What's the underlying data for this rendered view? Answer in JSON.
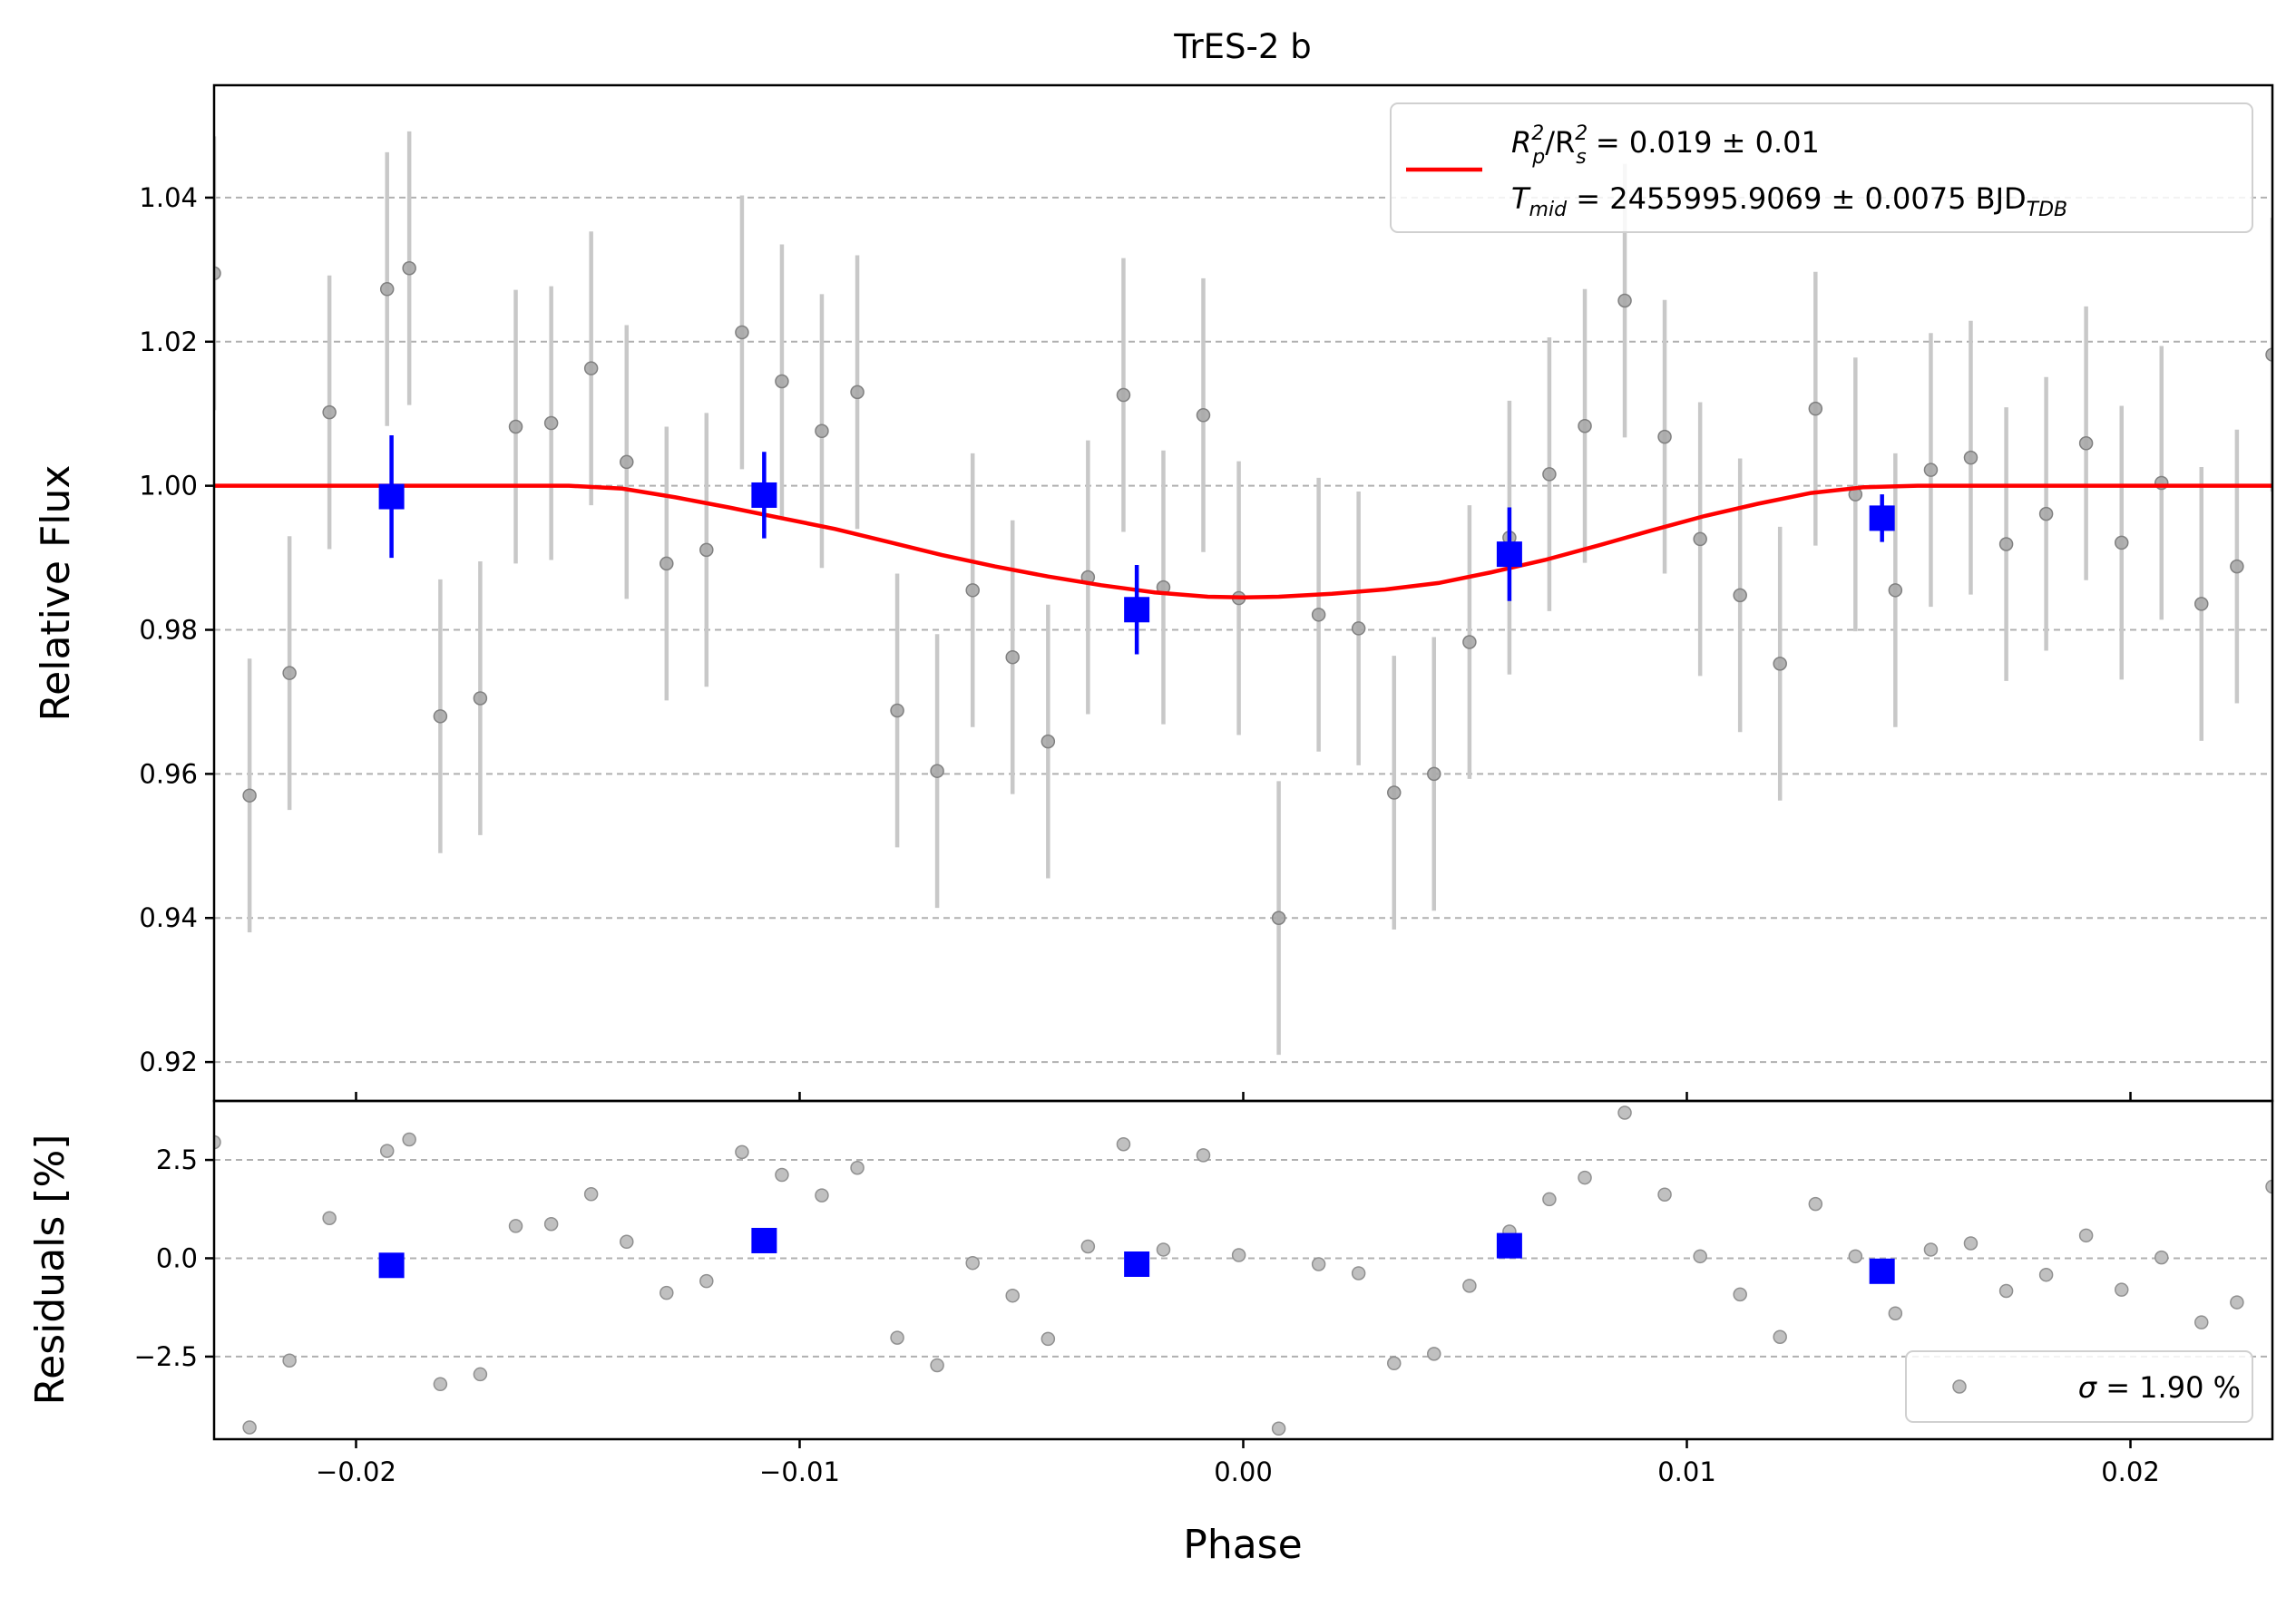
{
  "chart_data": {
    "type": "scatter",
    "title": "TrES-2 b",
    "xlabel": "Phase",
    "xlim": [
      -0.0232,
      0.0232
    ],
    "x_ticks": [
      -0.02,
      -0.01,
      0.0,
      0.01,
      0.02
    ],
    "x_tick_labels": [
      "−0.02",
      "−0.01",
      "0.00",
      "0.01",
      "0.02"
    ],
    "flux_panel": {
      "ylabel": "Relative Flux",
      "ylim": [
        0.9146,
        1.0556
      ],
      "y_ticks": [
        0.92,
        0.94,
        0.96,
        0.98,
        1.0,
        1.02,
        1.04
      ],
      "y_tick_labels": [
        "0.92",
        "0.94",
        "0.96",
        "0.98",
        "1.00",
        "1.02",
        "1.04"
      ],
      "grid": true,
      "legend": {
        "placement": "upper-right",
        "line1_prefix": "R",
        "line1_sub1": "p",
        "line1_sup1": "2",
        "line1_sep": "/R",
        "line1_sub2": "s",
        "line1_sup2": "2",
        "line1_value": " = 0.019 ± 0.01",
        "line2_prefix": "T",
        "line2_sub": "mid",
        "line2_value": " = 2455995.9069 ± 0.0075 BJD",
        "line2_unit_sub": "TDB"
      },
      "model_color": "#ff0000",
      "model": {
        "x": [
          -0.0232,
          -0.0152,
          -0.014,
          -0.0128,
          -0.0116,
          -0.0104,
          -0.0092,
          -0.008,
          -0.0068,
          -0.0056,
          -0.0044,
          -0.0032,
          -0.002,
          -0.0008,
          0.0,
          0.0008,
          0.002,
          0.0032,
          0.0044,
          0.0056,
          0.0068,
          0.008,
          0.0092,
          0.0104,
          0.0116,
          0.0128,
          0.014,
          0.0152,
          0.0232
        ],
        "y": [
          1.0,
          1.0,
          0.9996,
          0.9984,
          0.997,
          0.9955,
          0.994,
          0.9922,
          0.9904,
          0.9888,
          0.9874,
          0.9862,
          0.9852,
          0.9846,
          0.9845,
          0.9846,
          0.985,
          0.9856,
          0.9865,
          0.988,
          0.9897,
          0.9917,
          0.9938,
          0.9958,
          0.9975,
          0.999,
          0.9998,
          1.0,
          1.0
        ]
      },
      "raw_color": "#808080",
      "raw_errbar_color": "#c8c8c8",
      "raw": {
        "x": [
          -0.0232,
          -0.0224,
          -0.0215,
          -0.0206,
          -0.0193,
          -0.0188,
          -0.0181,
          -0.0172,
          -0.0164,
          -0.0156,
          -0.0147,
          -0.0139,
          -0.013,
          -0.0121,
          -0.0113,
          -0.0104,
          -0.0095,
          -0.0087,
          -0.0078,
          -0.0069,
          -0.0061,
          -0.0052,
          -0.0044,
          -0.0035,
          -0.0027,
          -0.0018,
          -0.0009,
          -0.0001,
          0.0008,
          0.0017,
          0.0026,
          0.0034,
          0.0043,
          0.0051,
          0.006,
          0.0069,
          0.0077,
          0.0086,
          0.0095,
          0.0103,
          0.0112,
          0.0121,
          0.0129,
          0.0138,
          0.0147,
          0.0155,
          0.0164,
          0.0172,
          0.0181,
          0.019,
          0.0198,
          0.0207,
          0.0216,
          0.0224,
          0.0232
        ],
        "y": [
          1.0295,
          0.957,
          0.974,
          1.0102,
          1.0273,
          1.0302,
          0.968,
          0.9705,
          1.0082,
          1.0087,
          1.0163,
          1.0033,
          0.9892,
          0.9911,
          1.0213,
          1.0145,
          1.0076,
          1.013,
          0.9688,
          0.9604,
          0.9855,
          0.9762,
          0.9645,
          0.9873,
          1.0126,
          0.9859,
          1.0098,
          0.9844,
          0.94,
          0.9821,
          0.9802,
          0.9574,
          0.96,
          0.9783,
          0.9928,
          1.0016,
          1.0083,
          1.0257,
          1.0068,
          0.9926,
          0.9848,
          0.9753,
          1.0107,
          0.9988,
          0.9855,
          1.0022,
          1.0039,
          0.9919,
          0.9961,
          1.0059,
          0.9921,
          1.0004,
          0.9836,
          0.9888,
          1.0182
        ],
        "err": [
          0.019,
          0.019,
          0.019,
          0.019,
          0.019,
          0.019,
          0.019,
          0.019,
          0.019,
          0.019,
          0.019,
          0.019,
          0.019,
          0.019,
          0.019,
          0.019,
          0.019,
          0.019,
          0.019,
          0.019,
          0.019,
          0.019,
          0.019,
          0.019,
          0.019,
          0.019,
          0.019,
          0.019,
          0.019,
          0.019,
          0.019,
          0.019,
          0.019,
          0.019,
          0.019,
          0.019,
          0.019,
          0.019,
          0.019,
          0.019,
          0.019,
          0.019,
          0.019,
          0.019,
          0.019,
          0.019,
          0.019,
          0.019,
          0.019,
          0.019,
          0.019,
          0.019,
          0.019,
          0.019,
          0.019
        ]
      },
      "binned_color": "#0000ff",
      "binned": {
        "x": [
          -0.0192,
          -0.0108,
          -0.0024,
          0.006,
          0.0144
        ],
        "y": [
          0.9985,
          0.9987,
          0.9828,
          0.9905,
          0.9955
        ],
        "err": [
          0.0085,
          0.006,
          0.0062,
          0.0065,
          0.0033
        ]
      }
    },
    "residual_panel": {
      "ylabel": "Residuals [%]",
      "ylim": [
        -4.6,
        4.0
      ],
      "y_ticks": [
        -2.5,
        0.0,
        2.5
      ],
      "y_tick_labels": [
        "−2.5",
        "0.0",
        "2.5"
      ],
      "grid": true,
      "legend": {
        "placement": "lower-right",
        "sigma_symbol": "σ",
        "sigma_value": " = 1.90 %"
      },
      "raw": {
        "x": [
          -0.0232,
          -0.0224,
          -0.0215,
          -0.0206,
          -0.0193,
          -0.0188,
          -0.0181,
          -0.0172,
          -0.0164,
          -0.0156,
          -0.0147,
          -0.0139,
          -0.013,
          -0.0121,
          -0.0113,
          -0.0104,
          -0.0095,
          -0.0087,
          -0.0078,
          -0.0069,
          -0.0061,
          -0.0052,
          -0.0044,
          -0.0035,
          -0.0027,
          -0.0018,
          -0.0009,
          -0.0001,
          0.0008,
          0.0017,
          0.0026,
          0.0034,
          0.0043,
          0.0051,
          0.006,
          0.0069,
          0.0077,
          0.0086,
          0.0095,
          0.0103,
          0.0112,
          0.0121,
          0.0129,
          0.0138,
          0.0147,
          0.0155,
          0.0164,
          0.0172,
          0.0181,
          0.019,
          0.0198,
          0.0207,
          0.0216,
          0.0224,
          0.0232
        ],
        "y": [
          2.95,
          -4.3,
          -2.6,
          1.02,
          2.73,
          3.02,
          -3.2,
          -2.95,
          0.82,
          0.87,
          1.63,
          0.42,
          -0.88,
          -0.58,
          2.7,
          2.12,
          1.6,
          2.3,
          -2.02,
          -2.72,
          -0.12,
          -0.95,
          -2.05,
          0.3,
          2.9,
          0.22,
          2.62,
          0.08,
          -4.33,
          -0.15,
          -0.38,
          -2.67,
          -2.43,
          -0.7,
          0.68,
          1.5,
          2.05,
          3.7,
          1.62,
          0.05,
          -0.92,
          -2.0,
          1.38,
          0.05,
          -1.4,
          0.22,
          0.38,
          -0.83,
          -0.42,
          0.58,
          -0.8,
          0.02,
          -1.63,
          -1.12,
          1.82
        ]
      },
      "binned": {
        "x": [
          -0.0192,
          -0.0108,
          -0.0024,
          0.006,
          0.0144
        ],
        "y": [
          -0.18,
          0.45,
          -0.15,
          0.32,
          -0.33
        ]
      }
    }
  }
}
